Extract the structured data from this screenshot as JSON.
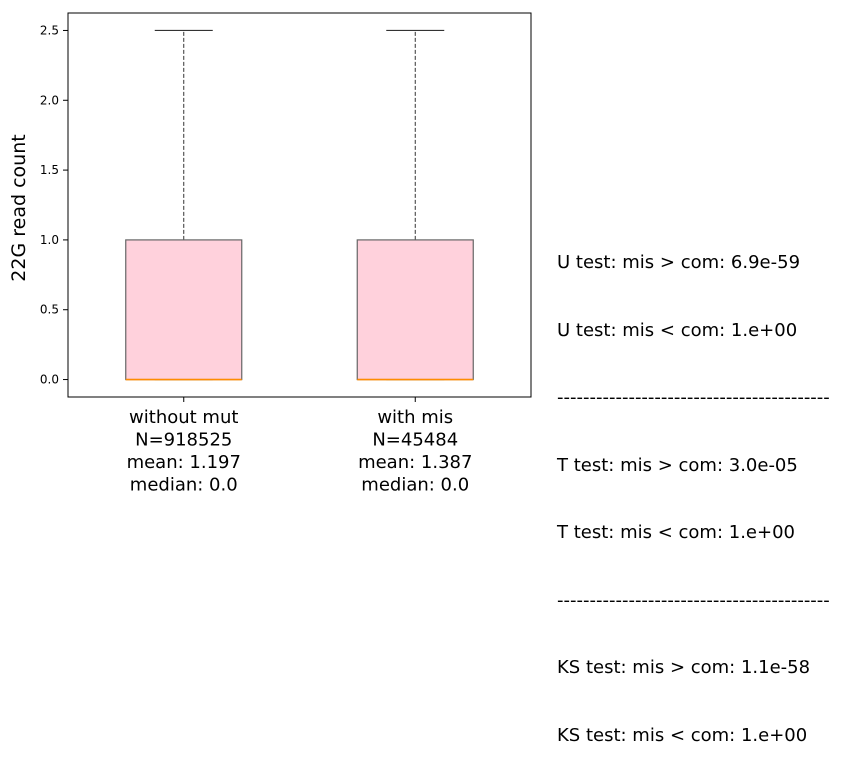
{
  "chart_data": {
    "type": "box",
    "ylabel": "22G read count",
    "ylim": [
      -0.125,
      2.625
    ],
    "yticks": [
      "0.0",
      "0.5",
      "1.0",
      "1.5",
      "2.0",
      "2.5"
    ],
    "yticks_values": [
      0.0,
      0.5,
      1.0,
      1.5,
      2.0,
      2.5
    ],
    "box_color": "#ffd1dc",
    "median_color": "#ff8c00",
    "groups": [
      {
        "category_lines": [
          "without mut",
          "N=918525",
          "mean: 1.197",
          "median: 0.0"
        ],
        "whisker_low": 0.0,
        "q1": 0.0,
        "median": 0.0,
        "q3": 1.0,
        "whisker_high": 2.5
      },
      {
        "category_lines": [
          "with mis",
          "N=45484",
          "mean: 1.387",
          "median: 0.0"
        ],
        "whisker_low": 0.0,
        "q1": 0.0,
        "median": 0.0,
        "q3": 1.0,
        "whisker_high": 2.5
      }
    ]
  },
  "stats": {
    "line1": "U test: mis > com: 6.9e-59",
    "line2": "U test: mis < com: 1.e+00",
    "sep1": "------------------------------------------",
    "line3": "T test: mis > com: 3.0e-05",
    "line4": "T test: mis < com: 1.e+00",
    "sep2": "------------------------------------------",
    "line5": "KS test: mis > com: 1.1e-58",
    "line6": "KS test: mis < com: 1.e+00"
  }
}
